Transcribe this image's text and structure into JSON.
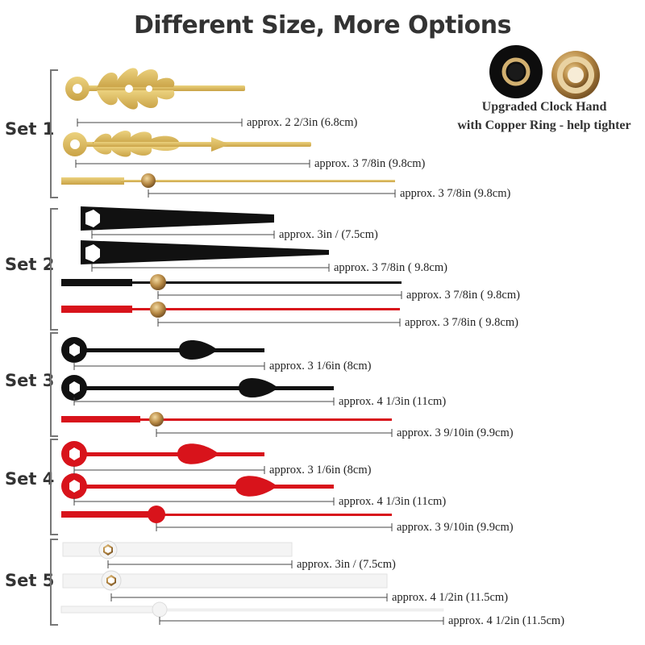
{
  "title": "Different Size, More Options",
  "upgrade_note": {
    "line1": "Upgraded Clock Hand",
    "line2": "with Copper Ring - help tighter"
  },
  "colors": {
    "gold": "#d9b85a",
    "black": "#111111",
    "red": "#d8131b",
    "white": "#f4f4f4"
  },
  "sets": [
    {
      "label": "Set 1",
      "hands": [
        {
          "measure": "approx. 2 2/3in (6.8cm)",
          "color": "gold",
          "icon": "ornate-hour-hand-icon"
        },
        {
          "measure": "approx. 3 7/8in (9.8cm)",
          "color": "gold",
          "icon": "ornate-minute-hand-icon"
        },
        {
          "measure": "approx. 3 7/8in (9.8cm)",
          "color": "gold",
          "icon": "second-hand-icon"
        }
      ]
    },
    {
      "label": "Set 2",
      "hands": [
        {
          "measure": "approx. 3in / (7.5cm)",
          "color": "black",
          "icon": "spade-hour-hand-icon"
        },
        {
          "measure": "approx. 3 7/8in ( 9.8cm)",
          "color": "black",
          "icon": "spade-minute-hand-icon"
        },
        {
          "measure": "approx. 3 7/8in ( 9.8cm)",
          "color": "black",
          "icon": "second-hand-icon"
        },
        {
          "measure": "approx. 3 7/8in ( 9.8cm)",
          "color": "red",
          "icon": "second-hand-icon"
        }
      ]
    },
    {
      "label": "Set 3",
      "hands": [
        {
          "measure": "approx. 3 1/6in (8cm)",
          "color": "black",
          "icon": "teardrop-hour-hand-icon"
        },
        {
          "measure": "approx. 4 1/3in (11cm)",
          "color": "black",
          "icon": "teardrop-minute-hand-icon"
        },
        {
          "measure": "approx. 3 9/10in (9.9cm)",
          "color": "red",
          "icon": "second-hand-icon"
        }
      ]
    },
    {
      "label": "Set 4",
      "hands": [
        {
          "measure": "approx. 3 1/6in (8cm)",
          "color": "red",
          "icon": "teardrop-hour-hand-icon"
        },
        {
          "measure": "approx. 4 1/3in (11cm)",
          "color": "red",
          "icon": "teardrop-minute-hand-icon"
        },
        {
          "measure": "approx. 3 9/10in (9.9cm)",
          "color": "red",
          "icon": "second-hand-icon"
        }
      ]
    },
    {
      "label": "Set 5",
      "hands": [
        {
          "measure": "approx. 3in / (7.5cm)",
          "color": "white",
          "icon": "baton-hour-hand-icon"
        },
        {
          "measure": "approx. 4 1/2in (11.5cm)",
          "color": "white",
          "icon": "baton-minute-hand-icon"
        },
        {
          "measure": "approx. 4 1/2in (11.5cm)",
          "color": "white",
          "icon": "second-hand-icon"
        }
      ]
    }
  ]
}
